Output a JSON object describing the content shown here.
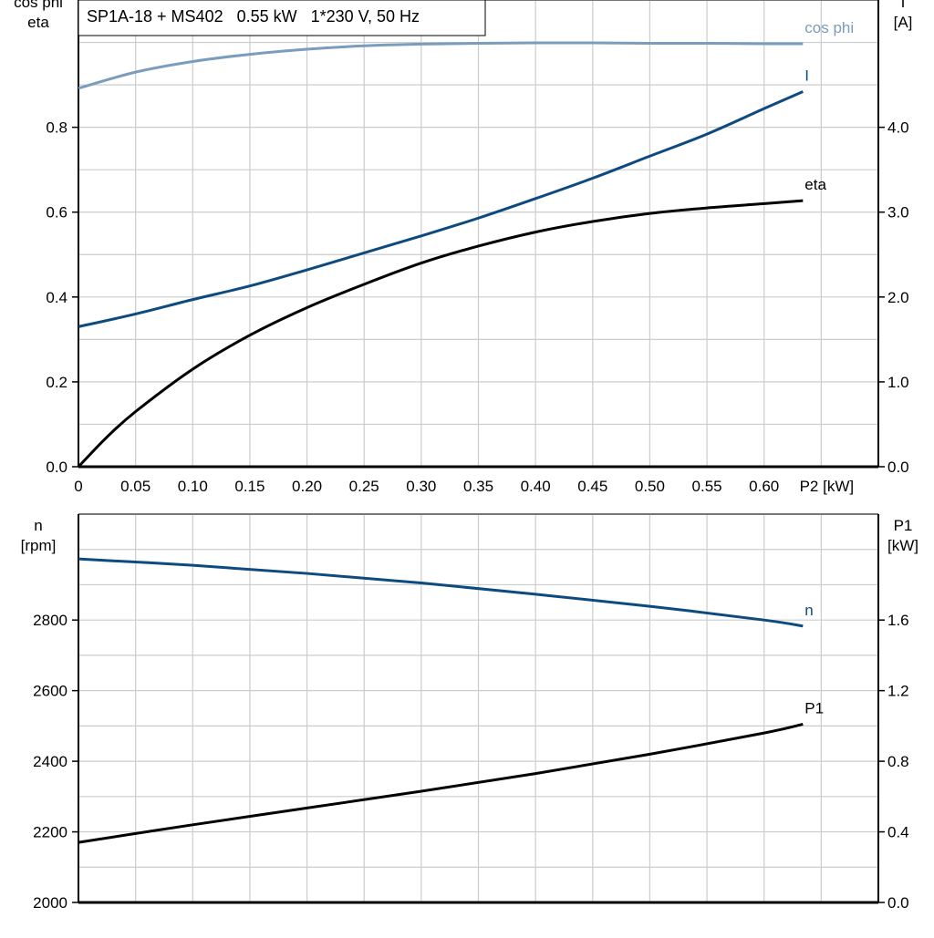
{
  "title": "SP1A-18 + MS402   0.55 kW   1*230 V, 50 Hz",
  "colors": {
    "cos_phi": "#7a9cbd",
    "I": "#0d4a80",
    "eta": "#000000",
    "n": "#0d4a80",
    "P1": "#000000",
    "grid": "#cccccc"
  },
  "chart_data": [
    {
      "type": "line",
      "xlabel": "P2 [kW]",
      "ylabel": "cos phi\neta",
      "ylabel_lines": [
        "cos phi",
        "eta"
      ],
      "y2label_lines": [
        "I",
        "[A]"
      ],
      "xlim": [
        0,
        0.7
      ],
      "ylim": [
        0,
        1.1
      ],
      "y2lim": [
        0,
        5.5
      ],
      "xticks": [
        0,
        0.05,
        0.1,
        0.15,
        0.2,
        0.25,
        0.3,
        0.35,
        0.4,
        0.45,
        0.5,
        0.55,
        0.6
      ],
      "xtick_labels": [
        "0",
        "0.05",
        "0.10",
        "0.15",
        "0.20",
        "0.25",
        "0.30",
        "0.35",
        "0.40",
        "0.45",
        "0.50",
        "0.55",
        "0.60"
      ],
      "yticks": [
        0,
        0.2,
        0.4,
        0.6,
        0.8
      ],
      "ytick_labels": [
        "0.0",
        "0.2",
        "0.4",
        "0.6",
        "0.8"
      ],
      "y2ticks": [
        0,
        1,
        2,
        3,
        4
      ],
      "y2tick_labels": [
        "0.0",
        "1.0",
        "2.0",
        "3.0",
        "4.0"
      ],
      "grid": true,
      "series": [
        {
          "name": "cos phi",
          "axis": "left",
          "color": "#7a9cbd",
          "x": [
            0,
            0.05,
            0.1,
            0.15,
            0.2,
            0.25,
            0.3,
            0.35,
            0.4,
            0.45,
            0.5,
            0.55,
            0.6,
            0.634
          ],
          "y": [
            0.892,
            0.93,
            0.955,
            0.972,
            0.984,
            0.992,
            0.996,
            0.998,
            0.999,
            0.999,
            0.998,
            0.998,
            0.997,
            0.997
          ]
        },
        {
          "name": "I",
          "axis": "right",
          "color": "#0d4a80",
          "x": [
            0,
            0.05,
            0.1,
            0.15,
            0.2,
            0.25,
            0.3,
            0.35,
            0.4,
            0.45,
            0.5,
            0.55,
            0.6,
            0.634
          ],
          "y": [
            1.65,
            1.8,
            1.97,
            2.13,
            2.32,
            2.52,
            2.72,
            2.93,
            3.16,
            3.4,
            3.66,
            3.92,
            4.22,
            4.42
          ]
        },
        {
          "name": "eta",
          "axis": "left",
          "color": "#000000",
          "x": [
            0,
            0.025,
            0.05,
            0.1,
            0.15,
            0.2,
            0.25,
            0.3,
            0.35,
            0.4,
            0.45,
            0.5,
            0.55,
            0.6,
            0.634
          ],
          "y": [
            0,
            0.07,
            0.13,
            0.23,
            0.31,
            0.375,
            0.43,
            0.48,
            0.52,
            0.553,
            0.578,
            0.597,
            0.61,
            0.62,
            0.627
          ]
        }
      ]
    },
    {
      "type": "line",
      "xlim": [
        0,
        0.7
      ],
      "ylabel_lines": [
        "n",
        "[rpm]"
      ],
      "y2label_lines": [
        "P1",
        "[kW]"
      ],
      "ylim": [
        2000,
        3100
      ],
      "y2lim": [
        0,
        2.2
      ],
      "yticks": [
        2000,
        2200,
        2400,
        2600,
        2800
      ],
      "ytick_labels": [
        "2000",
        "2200",
        "2400",
        "2600",
        "2800"
      ],
      "y2ticks": [
        0,
        0.4,
        0.8,
        1.2,
        1.6
      ],
      "y2tick_labels": [
        "0.0",
        "0.4",
        "0.8",
        "1.2",
        "1.6"
      ],
      "grid": true,
      "series": [
        {
          "name": "n",
          "axis": "left",
          "color": "#0d4a80",
          "x": [
            0,
            0.1,
            0.2,
            0.3,
            0.4,
            0.5,
            0.6,
            0.634
          ],
          "y": [
            2973,
            2955,
            2932,
            2905,
            2873,
            2839,
            2800,
            2783
          ]
        },
        {
          "name": "P1",
          "axis": "right",
          "color": "#000000",
          "x": [
            0,
            0.1,
            0.2,
            0.3,
            0.4,
            0.5,
            0.6,
            0.634
          ],
          "y": [
            0.34,
            0.44,
            0.535,
            0.63,
            0.73,
            0.84,
            0.96,
            1.01
          ]
        }
      ]
    }
  ]
}
